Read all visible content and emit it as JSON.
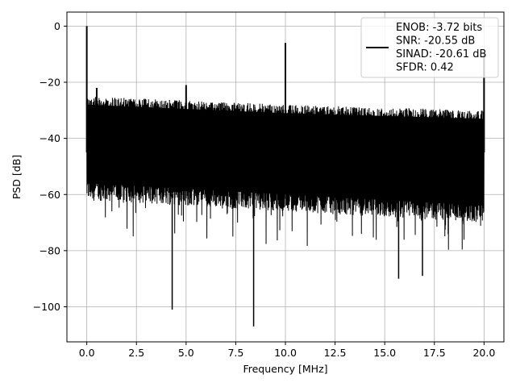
{
  "chart_data": {
    "type": "line",
    "xlabel": "Frequency [MHz]",
    "ylabel": "PSD [dB]",
    "xlim": [
      -1.0,
      21.0
    ],
    "ylim": [
      -112.5,
      5.0
    ],
    "xticks": [
      0.0,
      2.5,
      5.0,
      7.5,
      10.0,
      12.5,
      15.0,
      17.5,
      20.0
    ],
    "xtick_labels": [
      "0.0",
      "2.5",
      "5.0",
      "7.5",
      "10.0",
      "12.5",
      "15.0",
      "17.5",
      "20.0"
    ],
    "yticks": [
      0,
      -20,
      -40,
      -60,
      -80,
      -100
    ],
    "ytick_labels": [
      "0",
      "−20",
      "−40",
      "−60",
      "−80",
      "−100"
    ],
    "grid": true,
    "legend_placement": "top-right",
    "legend_entries": [
      "ENOB: -3.72 bits",
      "SNR: -20.55 dB",
      "SINAD: -20.61 dB",
      "SFDR: 0.42"
    ],
    "series": [
      {
        "color": "#000000",
        "noise_floor_top_db": [
          -25,
          -28,
          -30
        ],
        "noise_floor_bottom_db": [
          -62,
          -66,
          -70
        ],
        "peaks": [
          {
            "x": 0.0,
            "y": 0.0
          },
          {
            "x": 0.5,
            "y": -22.0
          },
          {
            "x": 5.0,
            "y": -21.0
          },
          {
            "x": 10.0,
            "y": -6.0
          },
          {
            "x": 20.0,
            "y": -10.0
          }
        ],
        "dips": [
          {
            "x": 4.3,
            "y": -101.0
          },
          {
            "x": 8.4,
            "y": -107.0
          },
          {
            "x": 15.7,
            "y": -90.0
          },
          {
            "x": 16.9,
            "y": -89.0
          }
        ]
      }
    ]
  }
}
